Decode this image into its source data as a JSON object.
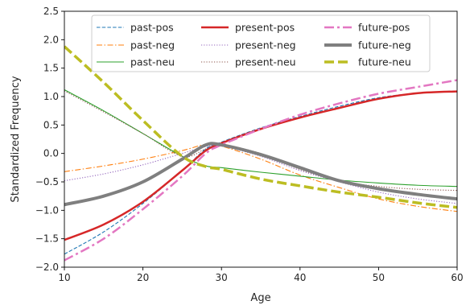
{
  "chart_data": {
    "type": "line",
    "title": "",
    "xlabel": "Age",
    "ylabel": "Standardized Frequency",
    "xlim": [
      10,
      60
    ],
    "ylim": [
      -2.0,
      2.5
    ],
    "xticks": [
      10,
      20,
      30,
      40,
      50,
      60
    ],
    "yticks": [
      -2.0,
      -1.5,
      -1.0,
      -0.5,
      0.0,
      0.5,
      1.0,
      1.5,
      2.0,
      2.5
    ],
    "xtick_labels": [
      "10",
      "20",
      "30",
      "40",
      "50",
      "60"
    ],
    "ytick_labels": [
      "−2.0",
      "−1.5",
      "−1.0",
      "−0.5",
      "0.0",
      "0.5",
      "1.0",
      "1.5",
      "2.0",
      "2.5"
    ],
    "grid": false,
    "legend": {
      "placement": "top-center",
      "columns": 3
    },
    "series": [
      {
        "name": "past-pos",
        "color": "#1f77b4",
        "style": "dashed-thin",
        "x": [
          10,
          15,
          20,
          25,
          28,
          30,
          35,
          40,
          45,
          50,
          55,
          60
        ],
        "y": [
          -1.77,
          -1.38,
          -0.88,
          -0.3,
          0.08,
          0.2,
          0.45,
          0.65,
          0.83,
          0.98,
          1.06,
          1.1
        ]
      },
      {
        "name": "past-neg",
        "color": "#ff7f0e",
        "style": "dashdot-thin",
        "x": [
          10,
          15,
          20,
          25,
          28,
          30,
          35,
          40,
          45,
          50,
          55,
          60
        ],
        "y": [
          -0.32,
          -0.22,
          -0.1,
          0.05,
          0.16,
          0.13,
          -0.1,
          -0.38,
          -0.6,
          -0.8,
          -0.93,
          -1.02
        ]
      },
      {
        "name": "past-neu",
        "color": "#2ca02c",
        "style": "solid-thin",
        "x": [
          10,
          15,
          20,
          25,
          28,
          30,
          35,
          40,
          45,
          50,
          55,
          60
        ],
        "y": [
          1.12,
          0.75,
          0.35,
          -0.05,
          -0.22,
          -0.25,
          -0.33,
          -0.4,
          -0.47,
          -0.52,
          -0.56,
          -0.58
        ]
      },
      {
        "name": "present-pos",
        "color": "#d62728",
        "style": "solid-medium",
        "x": [
          10,
          15,
          20,
          25,
          28,
          30,
          35,
          40,
          45,
          50,
          55,
          60
        ],
        "y": [
          -1.52,
          -1.25,
          -0.85,
          -0.3,
          0.05,
          0.18,
          0.43,
          0.63,
          0.8,
          0.96,
          1.06,
          1.09
        ]
      },
      {
        "name": "present-neg",
        "color": "#9467bd",
        "style": "dotted-thin",
        "x": [
          10,
          15,
          20,
          25,
          28,
          30,
          35,
          40,
          45,
          50,
          55,
          60
        ],
        "y": [
          -0.48,
          -0.36,
          -0.2,
          0.0,
          0.12,
          0.13,
          -0.05,
          -0.3,
          -0.5,
          -0.68,
          -0.8,
          -0.88
        ]
      },
      {
        "name": "present-neu",
        "color": "#8c564b",
        "style": "dotted-thin",
        "x": [
          10,
          15,
          20,
          25,
          28,
          30,
          35,
          40,
          45,
          50,
          55,
          60
        ],
        "y": [
          1.1,
          0.73,
          0.35,
          -0.05,
          0.08,
          0.15,
          0.0,
          -0.28,
          -0.48,
          -0.58,
          -0.63,
          -0.65
        ]
      },
      {
        "name": "future-pos",
        "color": "#e377c2",
        "style": "dashdot-medium",
        "x": [
          10,
          15,
          20,
          25,
          28,
          30,
          35,
          40,
          45,
          50,
          55,
          60
        ],
        "y": [
          -1.88,
          -1.5,
          -0.98,
          -0.4,
          0.0,
          0.15,
          0.43,
          0.68,
          0.88,
          1.05,
          1.17,
          1.29
        ]
      },
      {
        "name": "future-neg",
        "color": "#7f7f7f",
        "style": "solid-thick",
        "x": [
          10,
          15,
          20,
          25,
          28,
          30,
          35,
          40,
          45,
          50,
          55,
          60
        ],
        "y": [
          -0.9,
          -0.75,
          -0.5,
          -0.1,
          0.15,
          0.15,
          -0.02,
          -0.25,
          -0.48,
          -0.62,
          -0.72,
          -0.8
        ]
      },
      {
        "name": "future-neu",
        "color": "#bcbd22",
        "style": "dashed-thick",
        "x": [
          10,
          15,
          20,
          25,
          28,
          30,
          35,
          40,
          45,
          50,
          55,
          60
        ],
        "y": [
          1.88,
          1.25,
          0.58,
          -0.05,
          -0.23,
          -0.28,
          -0.45,
          -0.57,
          -0.68,
          -0.77,
          -0.87,
          -0.95
        ]
      }
    ]
  }
}
